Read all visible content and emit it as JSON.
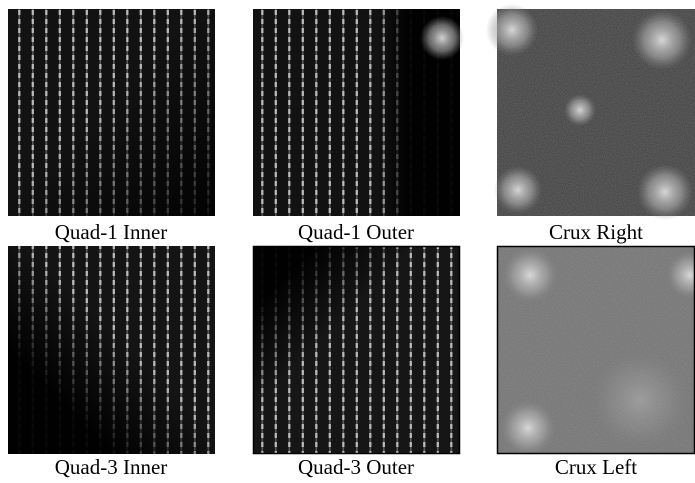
{
  "panels": [
    {
      "caption": "Quad-1 Inner"
    },
    {
      "caption": "Quad-1 Outer"
    },
    {
      "caption": "Crux Right"
    },
    {
      "caption": "Quad-3 Inner"
    },
    {
      "caption": "Quad-3 Outer"
    },
    {
      "caption": "Crux Left"
    }
  ]
}
